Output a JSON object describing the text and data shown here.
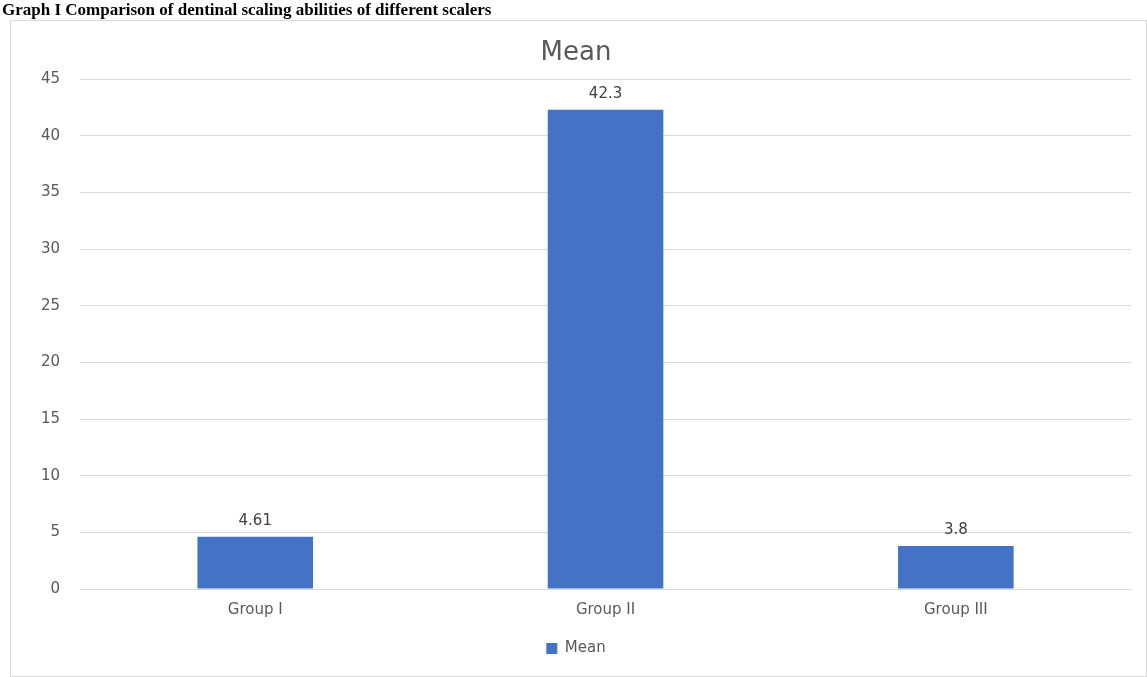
{
  "chart_data": {
    "type": "bar",
    "title": "Mean",
    "annotations": [
      "Graph I Comparison of dentinal scaling abilities of different scalers"
    ],
    "categories": [
      "Group I",
      "Group II",
      "Group III"
    ],
    "series": [
      {
        "name": "Mean",
        "color": "#4472c4",
        "values": [
          4.61,
          42.3,
          3.8
        ]
      }
    ],
    "ylim": [
      0,
      45
    ],
    "yticks": [
      0,
      5,
      10,
      15,
      20,
      25,
      30,
      35,
      40,
      45
    ],
    "grid": "y",
    "legend": "bottom",
    "data_labels": true
  }
}
